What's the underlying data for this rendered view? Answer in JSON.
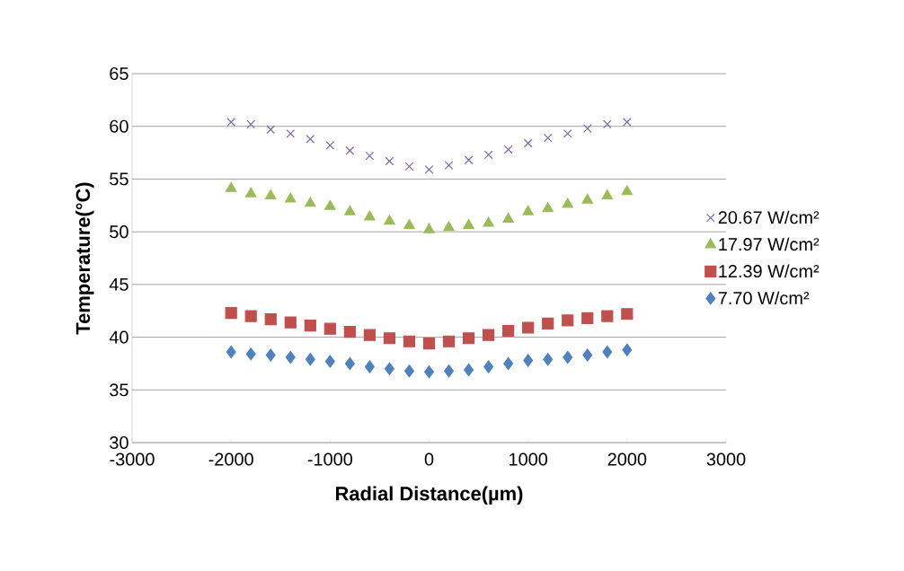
{
  "chart_data": {
    "type": "scatter",
    "xlabel": "Radial Distance(µm)",
    "ylabel": "Temperature(°C)",
    "x": [
      -2000,
      -1800,
      -1600,
      -1400,
      -1200,
      -1000,
      -800,
      -600,
      -400,
      -200,
      0,
      200,
      400,
      600,
      800,
      1000,
      1200,
      1400,
      1600,
      1800,
      2000
    ],
    "series": [
      {
        "name": "20.67 W/cm²",
        "color": "#8064a2",
        "marker": "cross",
        "values": [
          60.4,
          60.2,
          59.7,
          59.3,
          58.8,
          58.2,
          57.7,
          57.2,
          56.7,
          56.2,
          55.9,
          56.3,
          56.8,
          57.3,
          57.8,
          58.4,
          58.9,
          59.3,
          59.8,
          60.2,
          60.4
        ]
      },
      {
        "name": "17.97 W/cm²",
        "color": "#9bbb59",
        "marker": "triangle",
        "values": [
          54.1,
          53.6,
          53.4,
          53.1,
          52.7,
          52.4,
          51.9,
          51.4,
          51.0,
          50.6,
          50.2,
          50.4,
          50.6,
          50.8,
          51.2,
          51.9,
          52.2,
          52.6,
          53.0,
          53.4,
          53.8
        ]
      },
      {
        "name": "12.39 W/cm²",
        "color": "#c0504d",
        "marker": "square",
        "values": [
          42.3,
          42.0,
          41.7,
          41.4,
          41.1,
          40.8,
          40.5,
          40.2,
          39.9,
          39.6,
          39.4,
          39.6,
          39.9,
          40.2,
          40.6,
          40.9,
          41.3,
          41.6,
          41.8,
          42.0,
          42.2
        ]
      },
      {
        "name": "7.70 W/cm²",
        "color": "#4f81bd",
        "marker": "diamond",
        "values": [
          38.6,
          38.4,
          38.3,
          38.1,
          37.9,
          37.7,
          37.5,
          37.2,
          37.0,
          36.8,
          36.7,
          36.8,
          36.9,
          37.2,
          37.5,
          37.8,
          37.9,
          38.1,
          38.3,
          38.6,
          38.8
        ]
      }
    ],
    "xlim": [
      -3000,
      3000
    ],
    "xticks": [
      -3000,
      -2000,
      -1000,
      0,
      1000,
      2000,
      3000
    ],
    "ylim": [
      30,
      65
    ],
    "yticks": [
      30,
      35,
      40,
      45,
      50,
      55,
      60,
      65
    ],
    "grid": "y",
    "legend": "right"
  }
}
